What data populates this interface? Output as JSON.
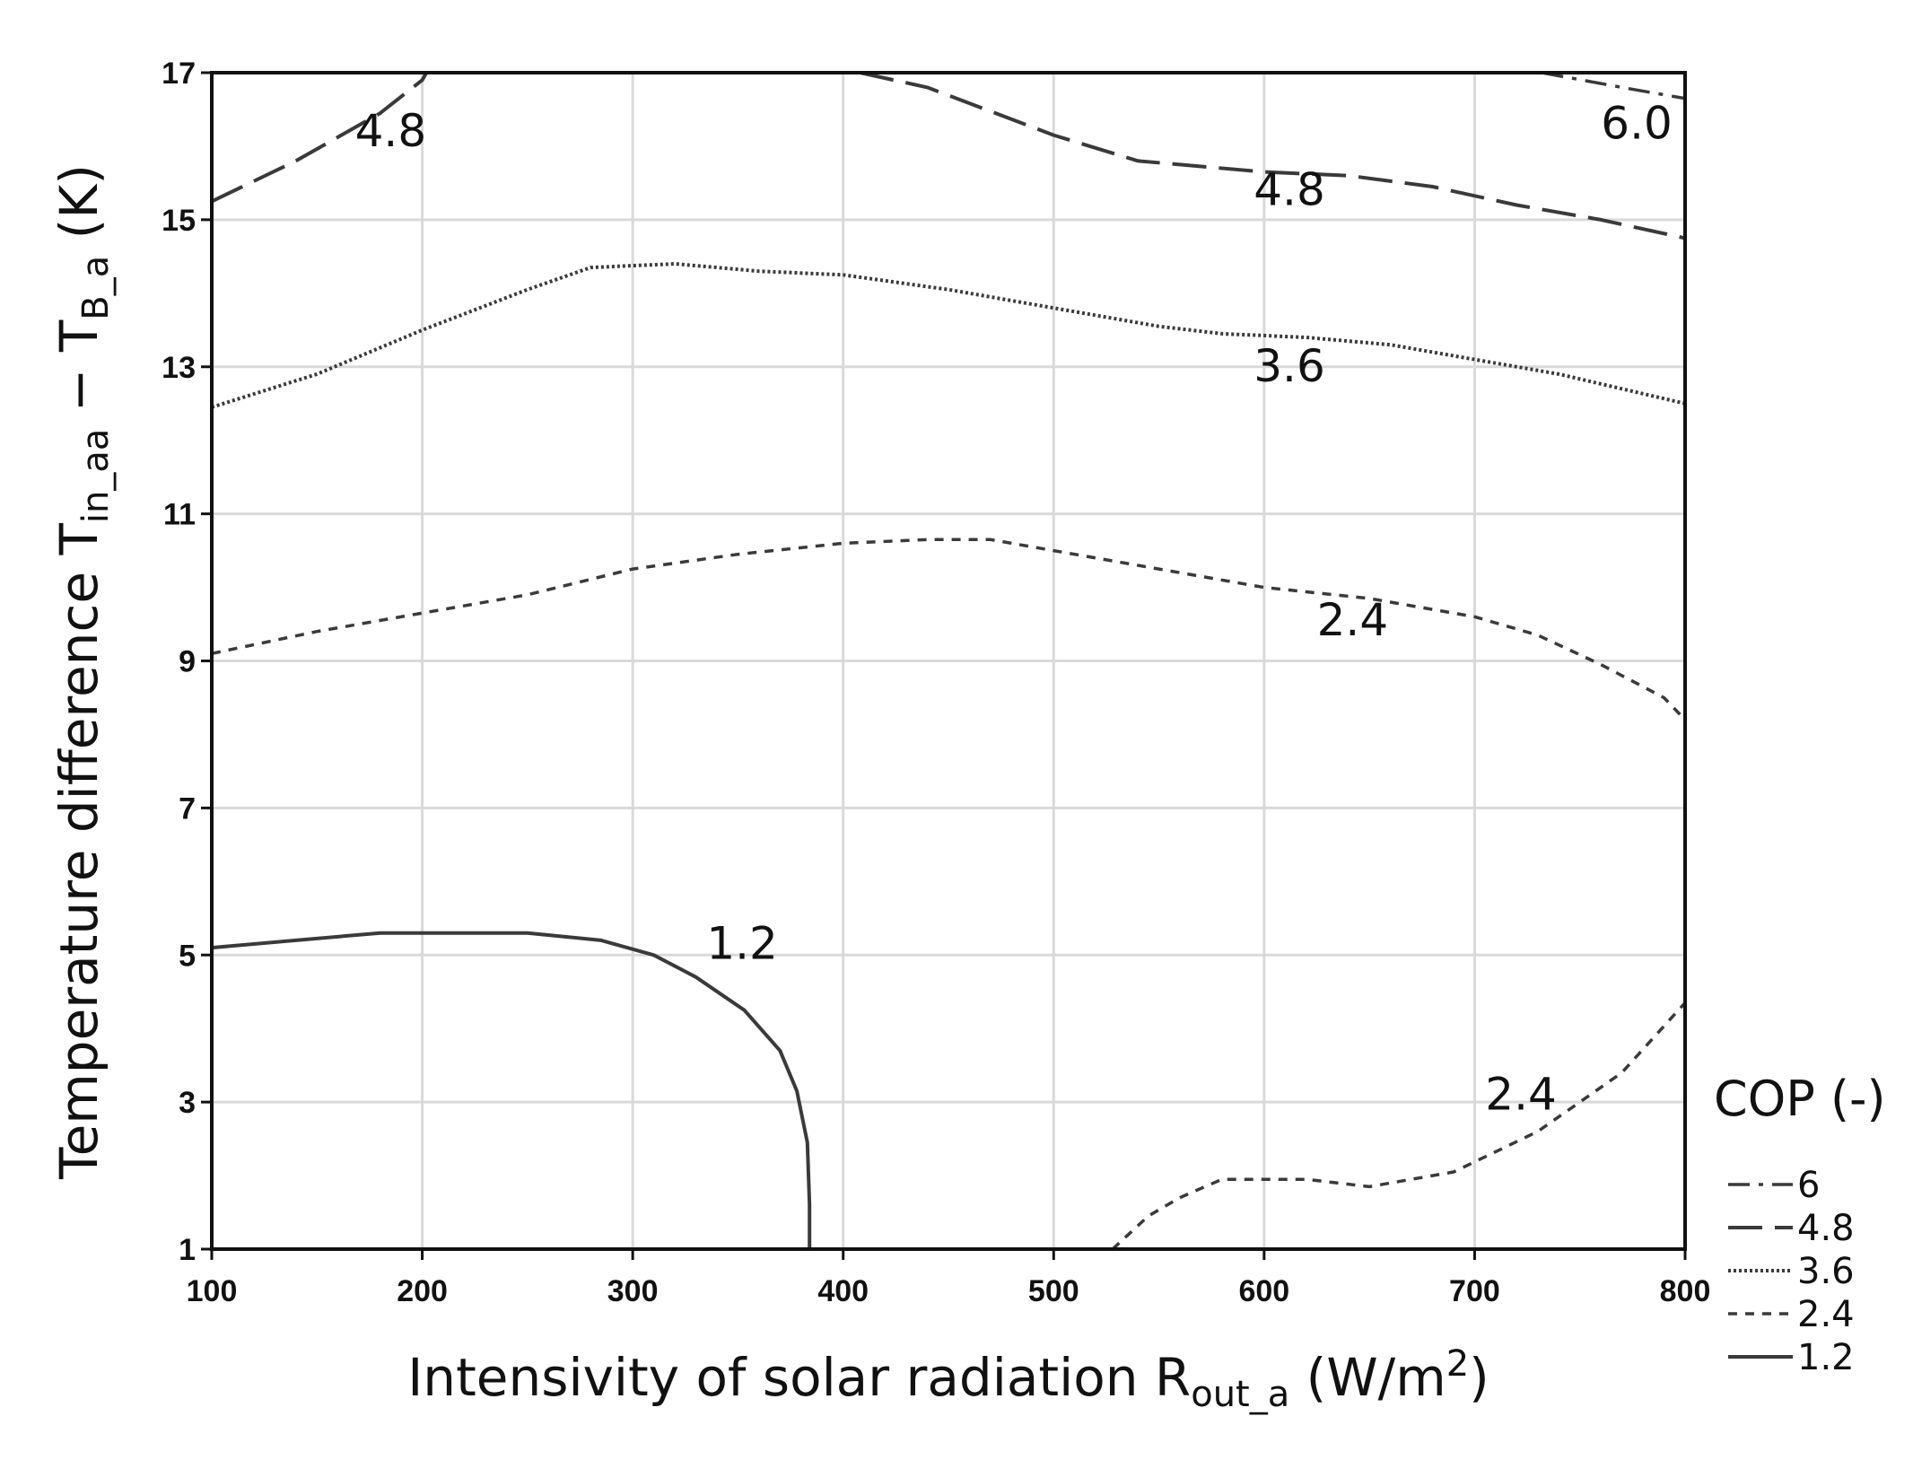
{
  "chart_data": {
    "type": "contour",
    "title": "",
    "xlabel": {
      "main": "Intensivity of solar radiation R",
      "sub": "out_a",
      "unit_prefix": " (W/m",
      "sup": "2",
      "unit_suffix": ")"
    },
    "ylabel": {
      "main": "Temperature difference T",
      "sub1": "in_aa",
      "mid": " − T",
      "sub2": "B_a",
      "unit": " (K)"
    },
    "xlim": [
      100,
      800
    ],
    "ylim": [
      1,
      17
    ],
    "xticks": [
      100,
      200,
      300,
      400,
      500,
      600,
      700,
      800
    ],
    "xtick_labels": [
      "100",
      "200",
      "300",
      "400",
      "500",
      "600",
      "700",
      "800"
    ],
    "yticks": [
      1,
      3,
      5,
      7,
      9,
      11,
      13,
      15,
      17
    ],
    "ytick_labels": [
      "1",
      "3",
      "5",
      "7",
      "9",
      "11",
      "13",
      "15",
      "17"
    ],
    "grid": true,
    "legend": {
      "title": "COP (-)",
      "placement": "bottom-right outside",
      "entries": [
        {
          "label": "6",
          "style": "dashdot"
        },
        {
          "label": "4.8",
          "style": "longdash"
        },
        {
          "label": "3.6",
          "style": "dotted"
        },
        {
          "label": "2.4",
          "style": "shortdash"
        },
        {
          "label": "1.2",
          "style": "solid"
        }
      ]
    },
    "series": [
      {
        "name": "6",
        "style": "dashdot",
        "points": [
          [
            732,
            17.0
          ],
          [
            770,
            16.8
          ],
          [
            800,
            16.65
          ]
        ]
      },
      {
        "name": "4.8",
        "style": "longdash",
        "points": [
          [
            100,
            15.25
          ],
          [
            140,
            15.8
          ],
          [
            180,
            16.45
          ],
          [
            200,
            16.9
          ],
          [
            202,
            17.0
          ]
        ]
      },
      {
        "name": "4.8",
        "style": "longdash",
        "points": [
          [
            408,
            17.0
          ],
          [
            440,
            16.8
          ],
          [
            500,
            16.15
          ],
          [
            540,
            15.8
          ],
          [
            600,
            15.65
          ],
          [
            640,
            15.6
          ],
          [
            680,
            15.45
          ],
          [
            720,
            15.2
          ],
          [
            760,
            15.0
          ],
          [
            800,
            14.75
          ]
        ]
      },
      {
        "name": "3.6",
        "style": "dotted",
        "points": [
          [
            100,
            12.45
          ],
          [
            150,
            12.9
          ],
          [
            200,
            13.5
          ],
          [
            250,
            14.05
          ],
          [
            280,
            14.35
          ],
          [
            320,
            14.4
          ],
          [
            360,
            14.3
          ],
          [
            400,
            14.25
          ],
          [
            450,
            14.05
          ],
          [
            500,
            13.8
          ],
          [
            550,
            13.55
          ],
          [
            580,
            13.45
          ],
          [
            620,
            13.4
          ],
          [
            660,
            13.3
          ],
          [
            700,
            13.1
          ],
          [
            740,
            12.9
          ],
          [
            770,
            12.7
          ],
          [
            800,
            12.5
          ]
        ]
      },
      {
        "name": "2.4",
        "style": "shortdash",
        "points": [
          [
            100,
            9.1
          ],
          [
            150,
            9.4
          ],
          [
            200,
            9.65
          ],
          [
            250,
            9.9
          ],
          [
            300,
            10.25
          ],
          [
            350,
            10.45
          ],
          [
            400,
            10.6
          ],
          [
            440,
            10.65
          ],
          [
            470,
            10.65
          ],
          [
            500,
            10.5
          ],
          [
            550,
            10.25
          ],
          [
            600,
            10.0
          ],
          [
            650,
            9.85
          ],
          [
            700,
            9.6
          ],
          [
            730,
            9.35
          ],
          [
            760,
            8.95
          ],
          [
            790,
            8.5
          ],
          [
            800,
            8.2
          ]
        ]
      },
      {
        "name": "2.4",
        "style": "shortdash",
        "points": [
          [
            528,
            1.0
          ],
          [
            545,
            1.45
          ],
          [
            560,
            1.7
          ],
          [
            580,
            1.95
          ],
          [
            620,
            1.95
          ],
          [
            650,
            1.85
          ],
          [
            690,
            2.05
          ],
          [
            730,
            2.6
          ],
          [
            770,
            3.4
          ],
          [
            800,
            4.35
          ]
        ]
      },
      {
        "name": "1.2",
        "style": "solid",
        "points": [
          [
            100,
            5.1
          ],
          [
            140,
            5.2
          ],
          [
            180,
            5.3
          ],
          [
            250,
            5.3
          ],
          [
            285,
            5.2
          ],
          [
            310,
            5.0
          ],
          [
            330,
            4.7
          ],
          [
            353,
            4.25
          ],
          [
            370,
            3.7
          ],
          [
            378,
            3.15
          ],
          [
            383,
            2.45
          ],
          [
            384,
            1.6
          ],
          [
            384,
            1.0
          ]
        ]
      }
    ],
    "annotations": [
      {
        "text": "4.8",
        "x": 185,
        "y": 16.0
      },
      {
        "text": "6.0",
        "x": 777,
        "y": 16.1
      },
      {
        "text": "4.8",
        "x": 612,
        "y": 15.2
      },
      {
        "text": "3.6",
        "x": 612,
        "y": 12.8
      },
      {
        "text": "2.4",
        "x": 642,
        "y": 9.35
      },
      {
        "text": "1.2",
        "x": 352,
        "y": 4.95
      },
      {
        "text": "2.4",
        "x": 722,
        "y": 2.9
      }
    ]
  }
}
